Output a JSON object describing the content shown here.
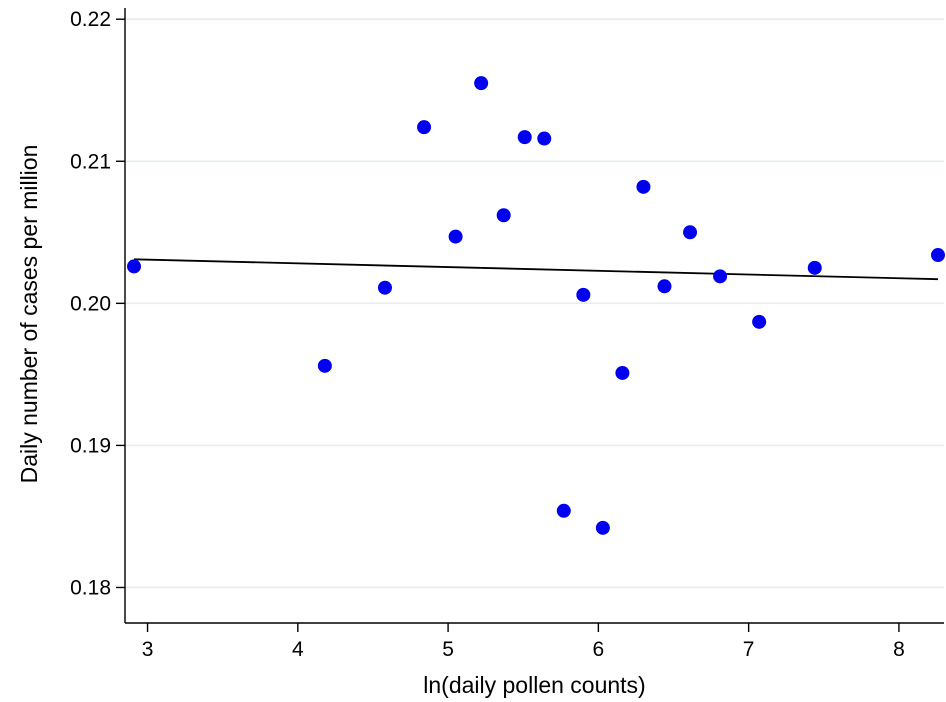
{
  "chart_data": {
    "type": "scatter",
    "title": "",
    "xlabel": "ln(daily pollen counts)",
    "ylabel": "Daily number of cases per million",
    "xlim": [
      2.85,
      8.3
    ],
    "ylim": [
      0.1775,
      0.221
    ],
    "x_ticks": [
      3,
      4,
      5,
      6,
      7,
      8
    ],
    "x_tick_labels": [
      "3",
      "4",
      "5",
      "6",
      "7",
      "8"
    ],
    "y_ticks": [
      0.18,
      0.19,
      0.2,
      0.21,
      0.22
    ],
    "y_tick_labels": [
      "0.18",
      "0.19",
      "0.20",
      "0.21",
      "0.22"
    ],
    "grid": {
      "horizontal": true,
      "vertical": false
    },
    "points": [
      {
        "x": 2.91,
        "y": 0.2026
      },
      {
        "x": 4.18,
        "y": 0.1956
      },
      {
        "x": 4.58,
        "y": 0.2011
      },
      {
        "x": 4.84,
        "y": 0.2124
      },
      {
        "x": 5.05,
        "y": 0.2047
      },
      {
        "x": 5.22,
        "y": 0.2155
      },
      {
        "x": 5.37,
        "y": 0.2062
      },
      {
        "x": 5.51,
        "y": 0.2117
      },
      {
        "x": 5.64,
        "y": 0.2116
      },
      {
        "x": 5.77,
        "y": 0.1854
      },
      {
        "x": 5.9,
        "y": 0.2006
      },
      {
        "x": 6.03,
        "y": 0.1842
      },
      {
        "x": 6.16,
        "y": 0.1951
      },
      {
        "x": 6.3,
        "y": 0.2082
      },
      {
        "x": 6.44,
        "y": 0.2012
      },
      {
        "x": 6.61,
        "y": 0.205
      },
      {
        "x": 6.81,
        "y": 0.2019
      },
      {
        "x": 7.07,
        "y": 0.1987
      },
      {
        "x": 7.44,
        "y": 0.2025
      },
      {
        "x": 8.26,
        "y": 0.2034
      }
    ],
    "fit_line": {
      "x": [
        2.91,
        8.26
      ],
      "y": [
        0.2031,
        0.2017
      ]
    },
    "colors": {
      "points": "#0000ee",
      "fit_line": "#000000",
      "grid": "#e4eef0",
      "axis": "#000000"
    }
  }
}
